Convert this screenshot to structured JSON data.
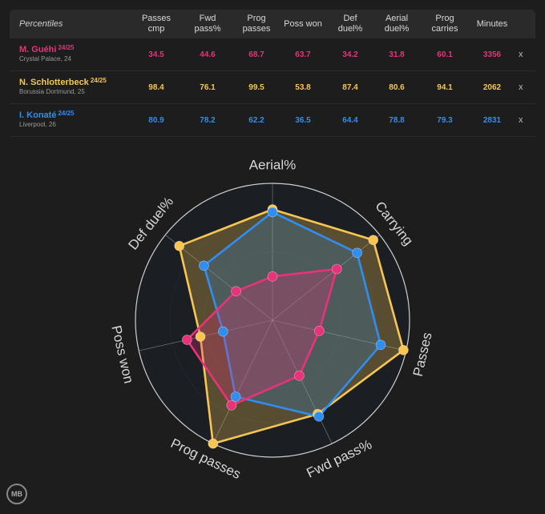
{
  "table": {
    "header_label": "Percentiles",
    "columns": [
      "Passes cmp",
      "Fwd pass%",
      "Prog passes",
      "Poss won",
      "Def duel%",
      "Aerial duel%",
      "Prog carries",
      "Minutes"
    ],
    "remove_label": "x",
    "rows": [
      {
        "name": "M. Guéhi",
        "season": "24/25",
        "club": "Crystal Palace, 24",
        "color": "#e8337a",
        "values": [
          "34.5",
          "44.6",
          "68.7",
          "63.7",
          "34.2",
          "31.8",
          "60.1",
          "3356"
        ]
      },
      {
        "name": "N. Schlotterbeck",
        "season": "24/25",
        "club": "Borussia Dortmund, 25",
        "color": "#f7c652",
        "values": [
          "98.4",
          "76.1",
          "99.5",
          "53.8",
          "87.4",
          "80.6",
          "94.1",
          "2062"
        ]
      },
      {
        "name": "I. Konaté",
        "season": "24/25",
        "club": "Liverpool, 26",
        "color": "#2f8ef0",
        "values": [
          "80.9",
          "78.2",
          "62.2",
          "36.5",
          "64.4",
          "78.8",
          "79.3",
          "2831"
        ]
      }
    ]
  },
  "chart_data": {
    "type": "radar",
    "axes": [
      "Aerial%",
      "Carrying",
      "Passes",
      "Fwd pass%",
      "Prog passes",
      "Poss won",
      "Def duel%"
    ],
    "range": [
      0,
      100
    ],
    "series": [
      {
        "name": "M. Guéhi",
        "color": "#e8337a",
        "values": [
          32,
          60,
          35,
          45,
          69,
          64,
          34
        ]
      },
      {
        "name": "N. Schlotterbeck",
        "color": "#f7c652",
        "values": [
          81,
          94,
          98,
          76,
          100,
          54,
          87
        ]
      },
      {
        "name": "I. Konaté",
        "color": "#2f8ef0",
        "values": [
          79,
          79,
          81,
          78,
          62,
          37,
          64
        ]
      }
    ]
  },
  "logo_text": "MB"
}
